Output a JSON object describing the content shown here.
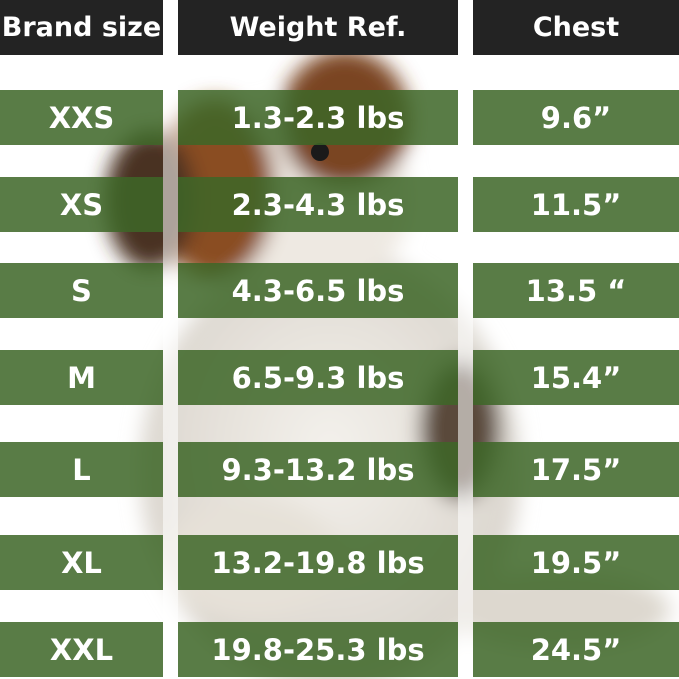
{
  "headers": [
    "Brand size",
    "Weight Ref.",
    "Chest"
  ],
  "rows": [
    {
      "size": "XXS",
      "weight": "1.3-2.3 lbs",
      "chest": "9.6”"
    },
    {
      "size": "XS",
      "weight": "2.3-4.3 lbs",
      "chest": "11.5”"
    },
    {
      "size": "S",
      "weight": "4.3-6.5 lbs",
      "chest": "13.5 “"
    },
    {
      "size": "M",
      "weight": "6.5-9.3 lbs",
      "chest": "15.4”"
    },
    {
      "size": "L",
      "weight": "9.3-13.2 lbs",
      "chest": "17.5”"
    },
    {
      "size": "XL",
      "weight": "13.2-19.8 lbs",
      "chest": "19.5”"
    },
    {
      "size": "XXL",
      "weight": "19.8-25.3 lbs",
      "chest": "24.5”"
    }
  ],
  "colors": {
    "header": "#232323",
    "row": "#3e6628"
  }
}
